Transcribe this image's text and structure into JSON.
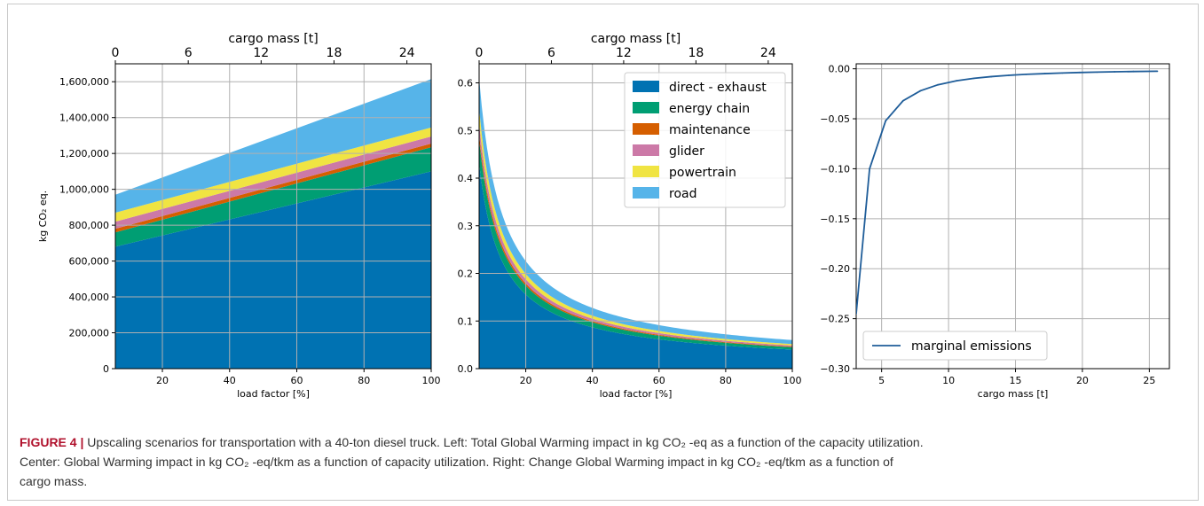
{
  "colors": {
    "direct_exhaust": "#0072B2",
    "energy_chain": "#009E73",
    "maintenance": "#D55E00",
    "glider": "#CC79A7",
    "powertrain": "#F0E442",
    "road": "#56B4E9",
    "marginal_line": "#1f5d99",
    "caption_label": "#b0112c"
  },
  "caption": {
    "label": "FIGURE 4 |",
    "line1": "Upscaling scenarios for transportation with a 40-ton diesel truck. Left: Total Global Warming impact in kg CO₂ -eq as a function of the capacity utilization.",
    "line2": "Center: Global Warming impact in kg CO₂ -eq/tkm as a function of capacity utilization. Right: Change Global Warming impact in kg CO₂ -eq/tkm as a function of",
    "line3": "cargo mass."
  },
  "chart_data": [
    {
      "type": "area",
      "stacked": true,
      "panel": "left",
      "xlabel": "load factor [%]",
      "ylabel": "kg CO₂ eq.",
      "secondary_xlabel": "cargo mass [t]",
      "xlim": [
        6,
        100
      ],
      "ylim": [
        0,
        1700000
      ],
      "xticks": [
        20,
        40,
        60,
        80,
        100
      ],
      "xtick_labels": [
        "20",
        "40",
        "60",
        "80",
        "100"
      ],
      "secondary_xticks": [
        0,
        6,
        12,
        18,
        24
      ],
      "secondary_xtick_labels": [
        "0",
        "6",
        "12",
        "18",
        "24"
      ],
      "yticks": [
        0,
        200000,
        400000,
        600000,
        800000,
        1000000,
        1200000,
        1400000,
        1600000
      ],
      "ytick_labels": [
        "0",
        "200,000",
        "400,000",
        "600,000",
        "800,000",
        "1,000,000",
        "1,200,000",
        "1,400,000",
        "1,600,000"
      ],
      "grid": true,
      "x": [
        6,
        100
      ],
      "series": [
        {
          "name": "direct - exhaust",
          "values": [
            680000,
            1100000
          ]
        },
        {
          "name": "energy chain",
          "values": [
            80000,
            135000
          ]
        },
        {
          "name": "maintenance",
          "values": [
            20000,
            20000
          ]
        },
        {
          "name": "glider",
          "values": [
            40000,
            40000
          ]
        },
        {
          "name": "powertrain",
          "values": [
            50000,
            50000
          ]
        },
        {
          "name": "road",
          "values": [
            100000,
            270000
          ]
        }
      ]
    },
    {
      "type": "area",
      "stacked": true,
      "panel": "center",
      "xlabel": "load factor [%]",
      "secondary_xlabel": "cargo mass [t]",
      "xlim": [
        6,
        100
      ],
      "ylim": [
        0,
        0.64
      ],
      "xticks": [
        20,
        40,
        60,
        80,
        100
      ],
      "xtick_labels": [
        "20",
        "40",
        "60",
        "80",
        "100"
      ],
      "secondary_xticks": [
        0,
        6,
        12,
        18,
        24
      ],
      "secondary_xtick_labels": [
        "0",
        "6",
        "12",
        "18",
        "24"
      ],
      "yticks": [
        0,
        0.1,
        0.2,
        0.3,
        0.4,
        0.5,
        0.6
      ],
      "ytick_labels": [
        "0.0",
        "0.1",
        "0.2",
        "0.3",
        "0.4",
        "0.5",
        "0.6"
      ],
      "grid": true,
      "legend_position": "top-right",
      "x": [
        6,
        100
      ],
      "series": [
        {
          "name": "direct - exhaust",
          "values": [
            0.43,
            0.04
          ]
        },
        {
          "name": "energy chain",
          "values": [
            0.05,
            0.005
          ]
        },
        {
          "name": "maintenance",
          "values": [
            0.012,
            0.0012
          ]
        },
        {
          "name": "glider",
          "values": [
            0.024,
            0.0024
          ]
        },
        {
          "name": "powertrain",
          "values": [
            0.03,
            0.003
          ]
        },
        {
          "name": "road",
          "values": [
            0.064,
            0.0084
          ]
        }
      ]
    },
    {
      "type": "line",
      "panel": "right",
      "xlabel": "cargo mass [t]",
      "xlim": [
        3.1,
        26.5
      ],
      "ylim": [
        -0.3,
        0.005
      ],
      "xticks": [
        5,
        10,
        15,
        20,
        25
      ],
      "xtick_labels": [
        "5",
        "10",
        "15",
        "20",
        "25"
      ],
      "yticks": [
        0,
        -0.05,
        -0.1,
        -0.15,
        -0.2,
        -0.25,
        -0.3
      ],
      "ytick_labels": [
        "0.00",
        "−0.05",
        "−0.10",
        "−0.15",
        "−0.20",
        "−0.25",
        "−0.30"
      ],
      "grid": true,
      "legend_position": "bottom-left",
      "series": [
        {
          "name": "marginal emissions",
          "x": [
            3.1,
            4.1,
            5.3,
            6.6,
            7.9,
            9.2,
            10.6,
            11.9,
            13.2,
            14.5,
            15.8,
            17.2,
            18.5,
            19.8,
            21.1,
            22.4,
            23.8,
            25.6
          ],
          "values": [
            -0.245,
            -0.1,
            -0.052,
            -0.032,
            -0.022,
            -0.016,
            -0.012,
            -0.0095,
            -0.0078,
            -0.0065,
            -0.0055,
            -0.0048,
            -0.0042,
            -0.0037,
            -0.0033,
            -0.003,
            -0.0027,
            -0.0024
          ]
        }
      ]
    }
  ]
}
